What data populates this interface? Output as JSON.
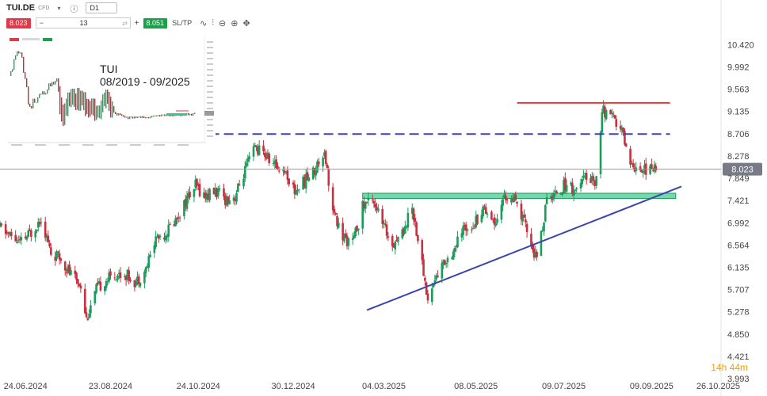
{
  "toolbar": {
    "symbol": "TUI.DE",
    "type_badge": "CFD",
    "dropdown_icon": "caret-down-icon",
    "info_icon": "info-icon",
    "timeframe": "D1",
    "sell_price": "8.023",
    "quantity": "13",
    "buy_price": "8.051",
    "sltp_label": "SL/TP",
    "tool_icons": [
      "indicator-icon",
      "candles-icon",
      "zoom-out-icon",
      "zoom-in-icon",
      "crosshair-move-icon"
    ]
  },
  "annotation": {
    "title": "TUI",
    "period": "08/2019 - 09/2025"
  },
  "timer": {
    "hours": "14h",
    "minutes": "44m"
  },
  "colors": {
    "up": "#1a9c5a",
    "down": "#c8303f",
    "resistance": "#e33a3a",
    "dashed": "#3a44b0",
    "trendline": "#3a44b0",
    "zone_fill": "#3ec48a",
    "current_line": "#9a9a9a",
    "price_badge": "#787b86"
  },
  "chart_data": {
    "type": "candlestick",
    "current_price": 8.023,
    "y_ticks": [
      "10.420",
      "9.992",
      "9.563",
      "9.135",
      "8.706",
      "8.278",
      "7.849",
      "7.421",
      "6.992",
      "6.564",
      "6.135",
      "5.707",
      "5.278",
      "4.850",
      "4.421",
      "3.993"
    ],
    "x_ticks": [
      "24.06.2024",
      "23.08.2024",
      "24.10.2024",
      "30.12.2024",
      "04.03.2025",
      "08.05.2025",
      "09.07.2025",
      "09.09.2025",
      "26.10.2025"
    ],
    "y_range": [
      3.993,
      10.7
    ],
    "x_range": [
      "06.06.2024",
      "28.10.2025"
    ],
    "resistance": {
      "from": "06.06.2025",
      "to": "22.09.2025",
      "value": 9.3
    },
    "dashed_level": {
      "from": "01.11.2024",
      "to": "22.09.2025",
      "value": 8.7
    },
    "zone": {
      "from": "17.02.2025",
      "to": "26.09.2025",
      "low": 7.46,
      "high": 7.56
    },
    "trendline": {
      "from": [
        "20.02.2025",
        5.31
      ],
      "to": [
        "30.09.2025",
        7.69
      ]
    },
    "path": [
      [
        "06.06.2024",
        6.9
      ],
      [
        "20.06.2024",
        6.6
      ],
      [
        "28.06.2024",
        6.8
      ],
      [
        "05.07.2024",
        7.1
      ],
      [
        "12.07.2024",
        6.4
      ],
      [
        "19.07.2024",
        6.3
      ],
      [
        "26.07.2024",
        6.0
      ],
      [
        "02.08.2024",
        5.8
      ],
      [
        "06.08.2024",
        5.15
      ],
      [
        "13.08.2024",
        5.7
      ],
      [
        "20.08.2024",
        5.9
      ],
      [
        "27.08.2024",
        6.0
      ],
      [
        "03.09.2024",
        6.0
      ],
      [
        "10.09.2024",
        5.85
      ],
      [
        "17.09.2024",
        6.1
      ],
      [
        "24.09.2024",
        6.7
      ],
      [
        "01.10.2024",
        6.8
      ],
      [
        "08.10.2024",
        7.05
      ],
      [
        "15.10.2024",
        7.4
      ],
      [
        "22.10.2024",
        7.7
      ],
      [
        "29.10.2024",
        7.5
      ],
      [
        "05.11.2024",
        7.6
      ],
      [
        "12.11.2024",
        7.45
      ],
      [
        "19.11.2024",
        7.5
      ],
      [
        "26.11.2024",
        8.0
      ],
      [
        "03.12.2024",
        8.45
      ],
      [
        "10.12.2024",
        8.3
      ],
      [
        "17.12.2024",
        8.1
      ],
      [
        "24.12.2024",
        8.0
      ],
      [
        "31.12.2024",
        7.6
      ],
      [
        "07.01.2025",
        7.8
      ],
      [
        "14.01.2025",
        8.0
      ],
      [
        "21.01.2025",
        8.4
      ],
      [
        "27.01.2025",
        7.2
      ],
      [
        "03.02.2025",
        6.7
      ],
      [
        "10.02.2025",
        6.6
      ],
      [
        "17.02.2025",
        7.3
      ],
      [
        "24.02.2025",
        7.5
      ],
      [
        "03.03.2025",
        6.95
      ],
      [
        "10.03.2025",
        6.6
      ],
      [
        "17.03.2025",
        6.8
      ],
      [
        "24.03.2025",
        7.3
      ],
      [
        "31.03.2025",
        6.2
      ],
      [
        "04.04.2025",
        5.5
      ],
      [
        "09.04.2025",
        5.9
      ],
      [
        "16.04.2025",
        6.25
      ],
      [
        "23.04.2025",
        6.5
      ],
      [
        "30.04.2025",
        6.9
      ],
      [
        "07.05.2025",
        7.0
      ],
      [
        "14.05.2025",
        7.3
      ],
      [
        "21.05.2025",
        7.0
      ],
      [
        "28.05.2025",
        7.5
      ],
      [
        "04.06.2025",
        7.4
      ],
      [
        "11.06.2025",
        7.0
      ],
      [
        "18.06.2025",
        6.4
      ],
      [
        "20.06.2025",
        6.3
      ],
      [
        "27.06.2025",
        7.4
      ],
      [
        "04.07.2025",
        7.6
      ],
      [
        "11.07.2025",
        7.75
      ],
      [
        "18.07.2025",
        7.6
      ],
      [
        "25.07.2025",
        7.9
      ],
      [
        "01.08.2025",
        7.8
      ],
      [
        "05.08.2025",
        9.15
      ],
      [
        "12.08.2025",
        9.0
      ],
      [
        "19.08.2025",
        8.75
      ],
      [
        "26.08.2025",
        8.1
      ],
      [
        "02.09.2025",
        8.05
      ],
      [
        "08.09.2025",
        8.0
      ],
      [
        "12.09.2025",
        8.02
      ]
    ]
  },
  "inset": {
    "title": "TUI",
    "period": "08/2019 - 09/2025"
  }
}
